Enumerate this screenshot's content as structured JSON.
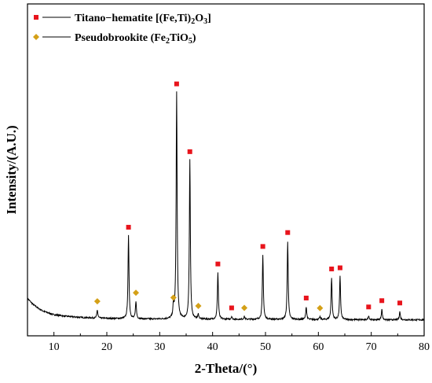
{
  "chart_data": {
    "type": "line",
    "xlabel": "2-Theta/(°)",
    "ylabel": "Intensity/(A.U.)",
    "xlim": [
      5,
      80
    ],
    "x_ticks": [
      10,
      20,
      30,
      40,
      50,
      60,
      70,
      80
    ],
    "y_ticks_shown": false,
    "grid": false,
    "legend_position": "top-left",
    "line_color": "#000000",
    "baseline": {
      "points": [
        [
          5,
          0.11
        ],
        [
          6,
          0.085
        ],
        [
          7,
          0.068
        ],
        [
          8,
          0.055
        ],
        [
          9,
          0.047
        ],
        [
          10,
          0.04
        ],
        [
          12,
          0.034
        ],
        [
          14,
          0.03
        ],
        [
          16,
          0.027
        ],
        [
          20,
          0.024
        ],
        [
          25,
          0.022
        ],
        [
          30,
          0.021
        ],
        [
          35,
          0.021
        ],
        [
          40,
          0.02
        ],
        [
          50,
          0.02
        ],
        [
          60,
          0.019
        ],
        [
          70,
          0.018
        ],
        [
          80,
          0.018
        ]
      ]
    },
    "peaks": [
      {
        "x": 18.2,
        "height": 0.035,
        "phase": "pseudobrookite"
      },
      {
        "x": 24.1,
        "height": 0.355,
        "phase": "titano-hematite"
      },
      {
        "x": 25.5,
        "height": 0.075,
        "phase": "pseudobrookite"
      },
      {
        "x": 32.6,
        "height": 0.055,
        "phase": "pseudobrookite"
      },
      {
        "x": 33.2,
        "height": 0.97,
        "phase": "titano-hematite"
      },
      {
        "x": 35.7,
        "height": 0.68,
        "phase": "titano-hematite"
      },
      {
        "x": 37.3,
        "height": 0.02,
        "phase": "pseudobrookite"
      },
      {
        "x": 41.0,
        "height": 0.2,
        "phase": "titano-hematite"
      },
      {
        "x": 43.6,
        "height": 0.012,
        "phase": "titano-hematite"
      },
      {
        "x": 46.0,
        "height": 0.012,
        "phase": "pseudobrookite"
      },
      {
        "x": 49.5,
        "height": 0.275,
        "phase": "titano-hematite"
      },
      {
        "x": 54.2,
        "height": 0.335,
        "phase": "titano-hematite"
      },
      {
        "x": 57.7,
        "height": 0.055,
        "phase": "titano-hematite"
      },
      {
        "x": 60.3,
        "height": 0.012,
        "phase": "pseudobrookite"
      },
      {
        "x": 62.5,
        "height": 0.18,
        "phase": "titano-hematite"
      },
      {
        "x": 64.1,
        "height": 0.185,
        "phase": "titano-hematite"
      },
      {
        "x": 69.5,
        "height": 0.018,
        "phase": "titano-hematite"
      },
      {
        "x": 72.0,
        "height": 0.045,
        "phase": "titano-hematite"
      },
      {
        "x": 75.4,
        "height": 0.035,
        "phase": "titano-hematite"
      }
    ],
    "series": [
      {
        "name": "Titano−hematite [(Fe,Ti)2O3]",
        "marker": "square",
        "color": "#e8141c"
      },
      {
        "name": "Pseudobrookite (Fe2TiO5)",
        "marker": "diamond",
        "color": "#d4a017"
      }
    ]
  },
  "legend": {
    "items": [
      {
        "parts": [
          {
            "t": "Titano−hematite [(Fe,Ti)"
          },
          {
            "t": "2",
            "sub": true
          },
          {
            "t": "O"
          },
          {
            "t": "3",
            "sub": true
          },
          {
            "t": "]"
          }
        ]
      },
      {
        "parts": [
          {
            "t": "Pseudobrookite (Fe"
          },
          {
            "t": "2",
            "sub": true
          },
          {
            "t": "TiO"
          },
          {
            "t": "5",
            "sub": true
          },
          {
            "t": ")"
          }
        ]
      }
    ]
  }
}
